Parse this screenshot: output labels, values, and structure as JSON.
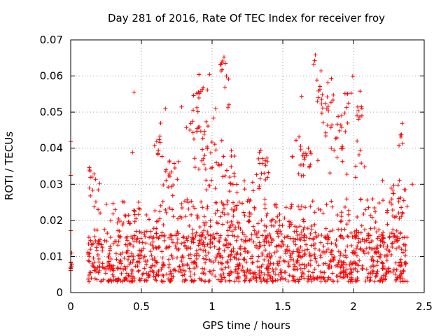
{
  "chart_data": {
    "type": "scatter",
    "title": "Day 281 of 2016, Rate Of TEC Index for receiver froy",
    "xlabel": "GPS time / hours",
    "ylabel": "ROTI / TECUs",
    "xlim": [
      0,
      2.5
    ],
    "ylim": [
      0,
      0.07
    ],
    "x_ticks": [
      0,
      0.5,
      1,
      1.5,
      2,
      2.5
    ],
    "x_tick_labels": [
      "0",
      "0.5",
      "1",
      "1.5",
      "2",
      "2.5"
    ],
    "y_ticks": [
      0,
      0.01,
      0.02,
      0.03,
      0.04,
      0.05,
      0.06,
      0.07
    ],
    "y_tick_labels": [
      "0",
      "0.01",
      "0.02",
      "0.03",
      "0.04",
      "0.05",
      "0.06",
      "0.07"
    ],
    "grid": true,
    "marker": "plus",
    "color": "#ff0000",
    "series": [
      {
        "name": "ROTI",
        "points_note": "approximate values estimated from the plot",
        "baseline_bands": [
          {
            "x_range": [
              0.12,
              2.38
            ],
            "y_range": [
              0.003,
              0.016
            ],
            "count": 1100
          },
          {
            "x_range": [
              0.15,
              2.38
            ],
            "y_range": [
              0.015,
              0.026
            ],
            "count": 350
          }
        ],
        "clusters": [
          {
            "x": 0.0,
            "y": 0.008,
            "spread_x": 0.005,
            "spread_y": 0.002,
            "count": 8
          },
          {
            "x": 0.0,
            "y": 0.041,
            "spread_x": 0.002,
            "spread_y": 0.001,
            "count": 1
          },
          {
            "x": 0.0,
            "y": 0.032,
            "spread_x": 0.002,
            "spread_y": 0.001,
            "count": 1
          },
          {
            "x": 0.0,
            "y": 0.016,
            "spread_x": 0.002,
            "spread_y": 0.001,
            "count": 1
          },
          {
            "x": 0.13,
            "y": 0.034,
            "spread_x": 0.01,
            "spread_y": 0.001,
            "count": 4
          },
          {
            "x": 0.16,
            "y": 0.031,
            "spread_x": 0.02,
            "spread_y": 0.002,
            "count": 8
          },
          {
            "x": 0.45,
            "y": 0.0553,
            "spread_x": 0.003,
            "spread_y": 0.0005,
            "count": 1
          },
          {
            "x": 0.44,
            "y": 0.04,
            "spread_x": 0.003,
            "spread_y": 0.0005,
            "count": 1
          },
          {
            "x": 0.62,
            "y": 0.04,
            "spread_x": 0.02,
            "spread_y": 0.003,
            "count": 10
          },
          {
            "x": 0.67,
            "y": 0.0498,
            "spread_x": 0.003,
            "spread_y": 0.0005,
            "count": 1
          },
          {
            "x": 0.7,
            "y": 0.033,
            "spread_x": 0.03,
            "spread_y": 0.004,
            "count": 18
          },
          {
            "x": 0.9,
            "y": 0.05,
            "spread_x": 0.04,
            "spread_y": 0.006,
            "count": 28
          },
          {
            "x": 0.92,
            "y": 0.0565,
            "spread_x": 0.01,
            "spread_y": 0.0008,
            "count": 3
          },
          {
            "x": 0.98,
            "y": 0.037,
            "spread_x": 0.05,
            "spread_y": 0.006,
            "count": 30
          },
          {
            "x": 1.07,
            "y": 0.0635,
            "spread_x": 0.015,
            "spread_y": 0.0008,
            "count": 8
          },
          {
            "x": 1.1,
            "y": 0.059,
            "spread_x": 0.01,
            "spread_y": 0.001,
            "count": 3
          },
          {
            "x": 1.12,
            "y": 0.0513,
            "spread_x": 0.005,
            "spread_y": 0.0005,
            "count": 2
          },
          {
            "x": 1.12,
            "y": 0.03,
            "spread_x": 0.06,
            "spread_y": 0.004,
            "count": 30
          },
          {
            "x": 1.35,
            "y": 0.033,
            "spread_x": 0.04,
            "spread_y": 0.004,
            "count": 22
          },
          {
            "x": 1.65,
            "y": 0.038,
            "spread_x": 0.04,
            "spread_y": 0.005,
            "count": 25
          },
          {
            "x": 1.73,
            "y": 0.064,
            "spread_x": 0.01,
            "spread_y": 0.0015,
            "count": 3
          },
          {
            "x": 1.78,
            "y": 0.053,
            "spread_x": 0.04,
            "spread_y": 0.004,
            "count": 20
          },
          {
            "x": 1.88,
            "y": 0.042,
            "spread_x": 0.05,
            "spread_y": 0.006,
            "count": 30
          },
          {
            "x": 1.96,
            "y": 0.0558,
            "spread_x": 0.02,
            "spread_y": 0.002,
            "count": 5
          },
          {
            "x": 1.99,
            "y": 0.0592,
            "spread_x": 0.003,
            "spread_y": 0.0005,
            "count": 1
          },
          {
            "x": 2.04,
            "y": 0.046,
            "spread_x": 0.02,
            "spread_y": 0.004,
            "count": 10
          },
          {
            "x": 2.06,
            "y": 0.037,
            "spread_x": 0.02,
            "spread_y": 0.002,
            "count": 6
          },
          {
            "x": 2.34,
            "y": 0.043,
            "spread_x": 0.02,
            "spread_y": 0.003,
            "count": 6
          },
          {
            "x": 2.32,
            "y": 0.028,
            "spread_x": 0.04,
            "spread_y": 0.003,
            "count": 16
          }
        ]
      }
    ]
  }
}
